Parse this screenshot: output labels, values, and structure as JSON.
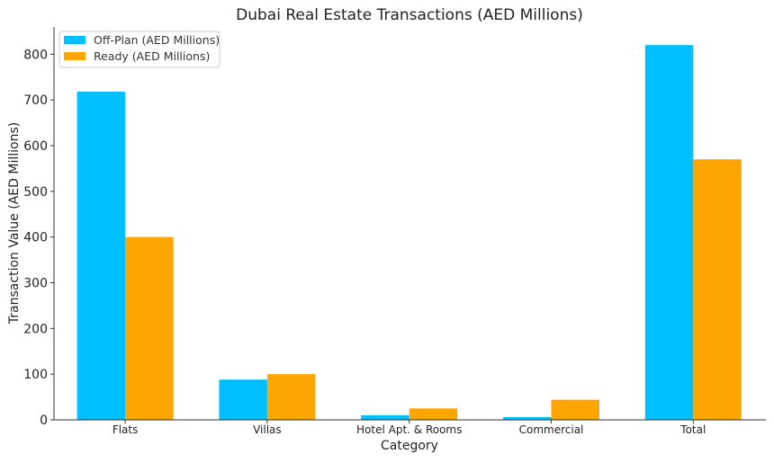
{
  "chart_data": {
    "type": "bar",
    "title": "Dubai Real Estate Transactions (AED Millions)",
    "xlabel": "Category",
    "ylabel": "Transaction Value (AED Millions)",
    "categories": [
      "Flats",
      "Villas",
      "Hotel Apt. & Rooms",
      "Commercial",
      "Total"
    ],
    "series": [
      {
        "name": "Off-Plan (AED Millions)",
        "color": "#00BFFF",
        "values": [
          718,
          88,
          10,
          6,
          820
        ]
      },
      {
        "name": "Ready (AED Millions)",
        "color": "#FFA500",
        "values": [
          400,
          100,
          25,
          44,
          570
        ]
      }
    ],
    "ylim": [
      0,
      860
    ],
    "yticks": [
      0,
      100,
      200,
      300,
      400,
      500,
      600,
      700,
      800
    ],
    "grid": false,
    "legend": "top-left"
  }
}
